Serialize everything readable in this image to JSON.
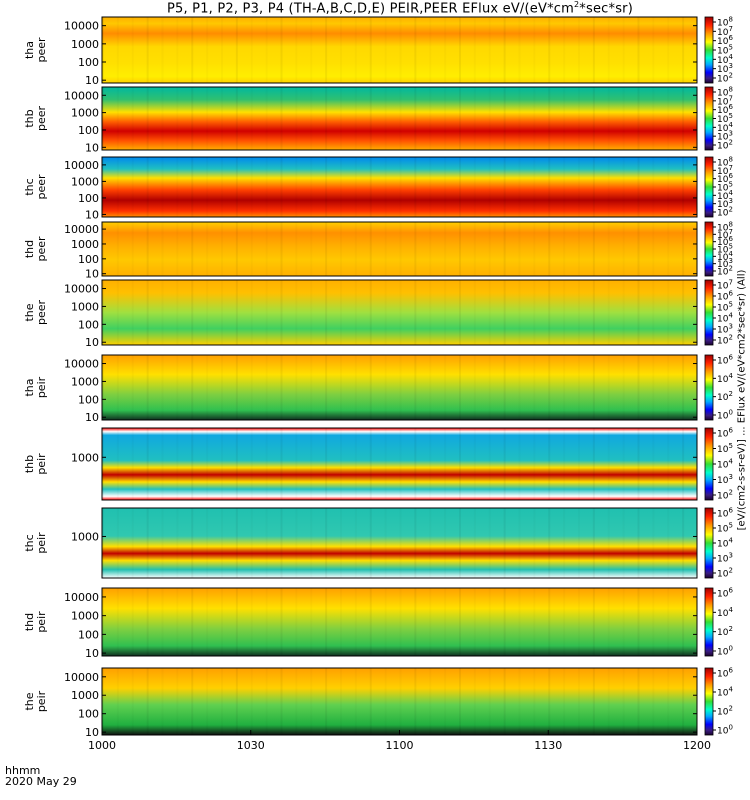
{
  "title": "P5, P1, P2, P3, P4 (TH-A,B,C,D,E) PEIR,PEER EFlux eV/(eV*cm2*sec*sr)",
  "title_parts": {
    "prefix": "P5, P1, P2, P3, P4 (TH-A,B,C,D,E) PEIR,PEER EFlux eV/(eV*cm",
    "sup": "2",
    "suffix": "*sec*sr)"
  },
  "time_axis": {
    "row_label": "hhmm",
    "date_label": "2020 May 29",
    "ticks": [
      "1000",
      "1030",
      "1100",
      "1130",
      "1200"
    ]
  },
  "colorbar_units_label": "[eV/(cm2-s-sr-eV)] ... EFlux eV/(eV*cm2*sec*sr) (All)",
  "colors": {
    "colormap": [
      "#000000",
      "#2a1b6f",
      "#0000ff",
      "#00aaff",
      "#00ffcc",
      "#39d63a",
      "#ffff00",
      "#ffa500",
      "#ff4000",
      "#c80000"
    ],
    "separator": "#ffffff",
    "red_bar": "#ff0000"
  },
  "chart_data": [
    {
      "type": "heatmap",
      "probe": "tha",
      "ylabel": "tha\npeer",
      "yticks": [
        "10000",
        "1000",
        "100",
        "10"
      ],
      "ylim": [
        7,
        30000
      ],
      "yscale": "log",
      "cb_ticks": [
        "10^8",
        "10^7",
        "10^6",
        "10^5",
        "10^4",
        "10^3",
        "10^2"
      ]
    },
    {
      "type": "heatmap",
      "probe": "thb",
      "ylabel": "thb\npeer",
      "yticks": [
        "10000",
        "1000",
        "100",
        "10"
      ],
      "ylim": [
        7,
        30000
      ],
      "yscale": "log",
      "cb_ticks": [
        "10^8",
        "10^7",
        "10^6",
        "10^5",
        "10^4",
        "10^3",
        "10^2"
      ]
    },
    {
      "type": "heatmap",
      "probe": "thc",
      "ylabel": "thc\npeer",
      "yticks": [
        "10000",
        "1000",
        "100",
        "10"
      ],
      "ylim": [
        7,
        30000
      ],
      "yscale": "log",
      "cb_ticks": [
        "10^8",
        "10^7",
        "10^6",
        "10^5",
        "10^4",
        "10^3",
        "10^2"
      ]
    },
    {
      "type": "heatmap",
      "probe": "thd",
      "ylabel": "thd\npeer",
      "yticks": [
        "10000",
        "1000",
        "100",
        "10"
      ],
      "ylim": [
        7,
        30000
      ],
      "yscale": "log",
      "cb_ticks": [
        "10^8",
        "10^7",
        "10^6",
        "10^5",
        "10^4",
        "10^3",
        "10^2"
      ]
    },
    {
      "type": "heatmap",
      "probe": "the",
      "ylabel": "the\npeer",
      "yticks": [
        "10000",
        "1000",
        "100",
        "10"
      ],
      "ylim": [
        7,
        30000
      ],
      "yscale": "log",
      "cb_ticks": [
        "10^7",
        "10^6",
        "10^5",
        "10^4",
        "10^3",
        "10^2"
      ]
    },
    {
      "type": "heatmap",
      "probe": "tha",
      "ylabel": "tha\npeir",
      "yticks": [
        "10000",
        "1000",
        "100",
        "10"
      ],
      "ylim": [
        7,
        30000
      ],
      "yscale": "log",
      "cb_ticks": [
        "10^6",
        "10^4",
        "10^2",
        "10^0"
      ]
    },
    {
      "type": "heatmap",
      "probe": "thb",
      "ylabel": "thb\npeir",
      "yticks": [
        "1000"
      ],
      "ylim": [
        7,
        30000
      ],
      "yscale": "log",
      "cb_ticks": [
        "10^6",
        "10^5",
        "10^4",
        "10^3",
        "10^2"
      ]
    },
    {
      "type": "heatmap",
      "probe": "thc",
      "ylabel": "thc\npeir",
      "yticks": [
        "1000"
      ],
      "ylim": [
        7,
        30000
      ],
      "yscale": "log",
      "cb_ticks": [
        "10^6",
        "10^5",
        "10^4",
        "10^3",
        "10^2"
      ]
    },
    {
      "type": "heatmap",
      "probe": "thd",
      "ylabel": "thd\npeir",
      "yticks": [
        "10000",
        "1000",
        "100",
        "10"
      ],
      "ylim": [
        7,
        30000
      ],
      "yscale": "log",
      "cb_ticks": [
        "10^6",
        "10^4",
        "10^2",
        "10^0"
      ]
    },
    {
      "type": "heatmap",
      "probe": "the",
      "ylabel": "the\npeir",
      "yticks": [
        "10000",
        "1000",
        "100",
        "10"
      ],
      "ylim": [
        7,
        30000
      ],
      "yscale": "log",
      "cb_ticks": [
        "10^6",
        "10^4",
        "10^2",
        "10^0"
      ]
    }
  ]
}
